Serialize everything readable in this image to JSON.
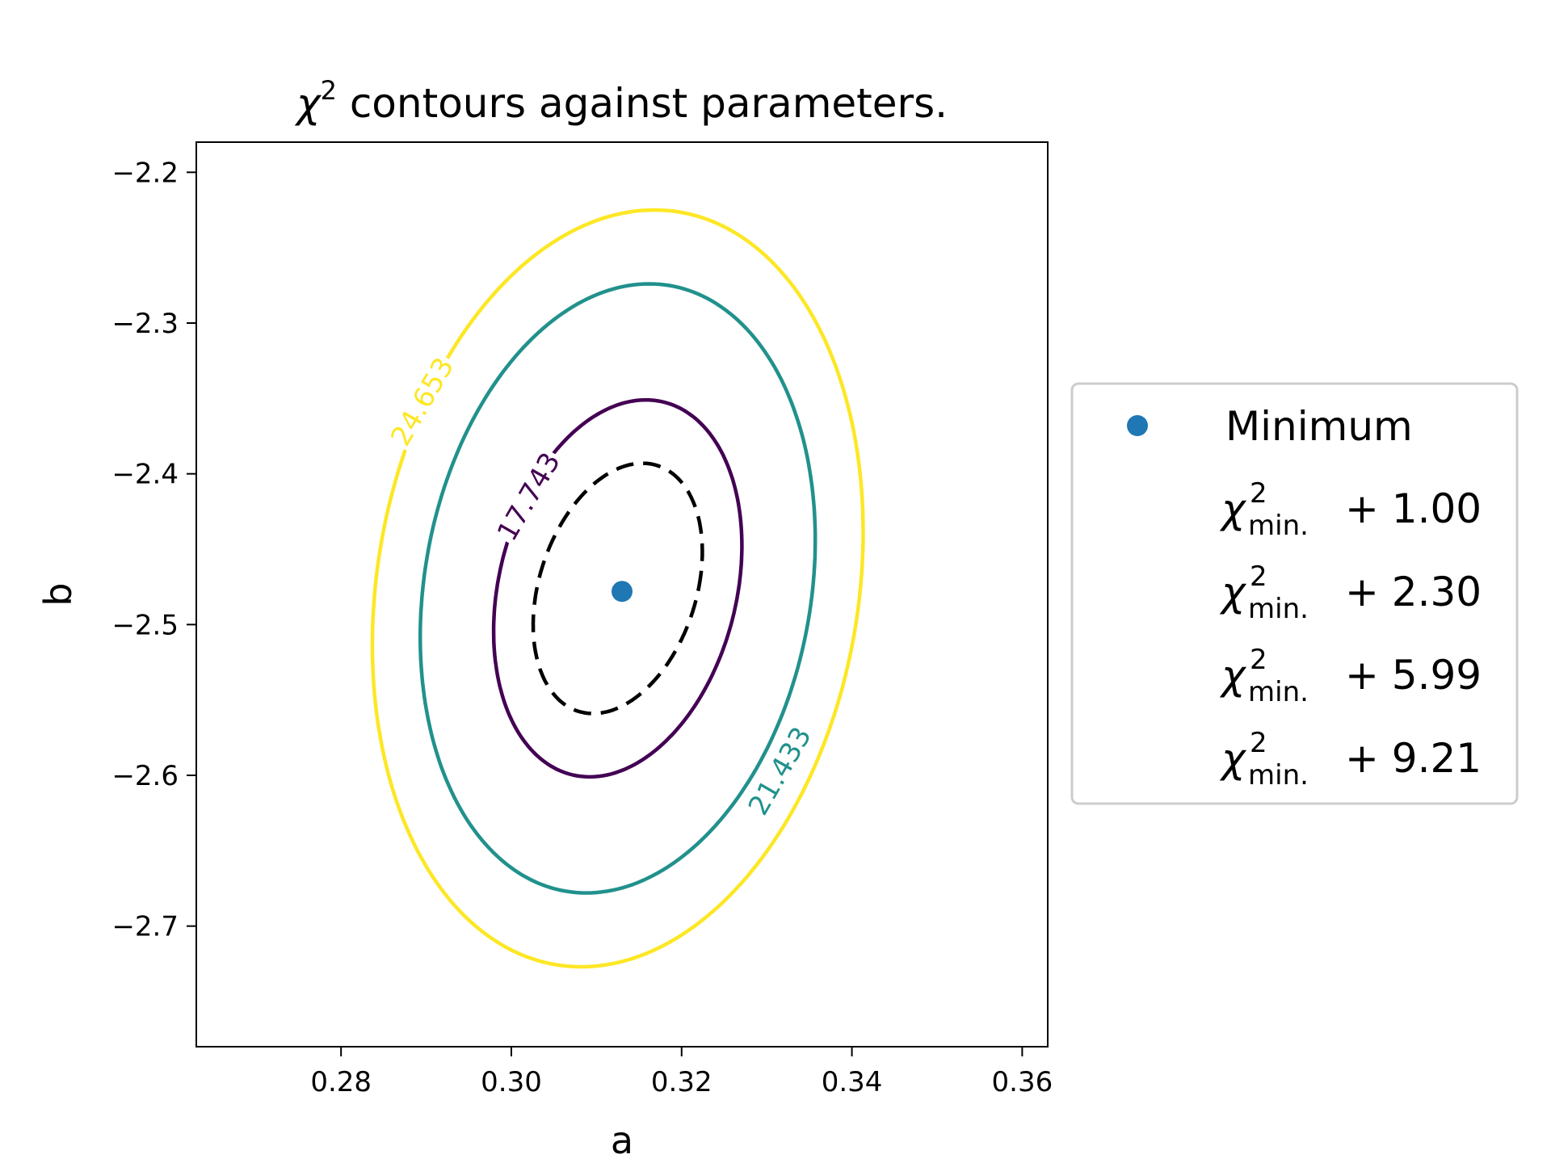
{
  "chart_data": {
    "type": "contour",
    "title": "χ² contours against parameters.",
    "title_parts": {
      "chi": "χ",
      "sup": "2",
      "rest": " contours against parameters."
    },
    "xlabel": "a",
    "ylabel": "b",
    "xlim": [
      0.263,
      0.363
    ],
    "ylim": [
      -2.78,
      -2.18
    ],
    "x_ticks": [
      0.28,
      0.3,
      0.32,
      0.34,
      0.36
    ],
    "x_tick_labels": [
      "0.28",
      "0.30",
      "0.32",
      "0.34",
      "0.36"
    ],
    "y_ticks": [
      -2.2,
      -2.3,
      -2.4,
      -2.5,
      -2.6,
      -2.7
    ],
    "y_tick_labels": [
      "−2.2",
      "−2.3",
      "−2.4",
      "−2.5",
      "−2.6",
      "−2.7"
    ],
    "minimum": {
      "a": 0.313,
      "b": -2.478,
      "color": "#1f77b4"
    },
    "contours": [
      {
        "level_text": "",
        "style": "dashed",
        "color": "#000000",
        "center": [
          0.3125,
          -2.476
        ],
        "semi_a": 0.0095,
        "semi_b": 0.083,
        "tilt": 0.0029,
        "label_pos": null
      },
      {
        "level_text": "17.743",
        "style": "solid",
        "color": "#440154",
        "center": [
          0.3125,
          -2.476
        ],
        "semi_a": 0.0142,
        "semi_b": 0.125,
        "tilt": 0.0033,
        "label_pos": [
          0.302,
          -2.415
        ]
      },
      {
        "level_text": "21.433",
        "style": "solid",
        "color": "#21918c",
        "center": [
          0.3125,
          -2.476
        ],
        "semi_a": 0.0229,
        "semi_b": 0.202,
        "tilt": 0.0037,
        "label_pos": [
          0.3315,
          -2.597
        ]
      },
      {
        "level_text": "24.653",
        "style": "solid",
        "color": "#fde725",
        "center": [
          0.3125,
          -2.476
        ],
        "semi_a": 0.0285,
        "semi_b": 0.251,
        "tilt": 0.0043,
        "label_pos": [
          0.2895,
          -2.352
        ]
      }
    ],
    "legend": {
      "placement": "outside-right",
      "entries": [
        {
          "type": "marker",
          "label": "Minimum"
        },
        {
          "type": "chi",
          "value": "+ 1.00"
        },
        {
          "type": "chi",
          "value": "+ 2.30"
        },
        {
          "type": "chi",
          "value": "+ 5.99"
        },
        {
          "type": "chi",
          "value": "+ 9.21"
        }
      ],
      "chi_symbol": "χ",
      "chi_sup": "2",
      "chi_sub": "min."
    },
    "grid": false
  }
}
